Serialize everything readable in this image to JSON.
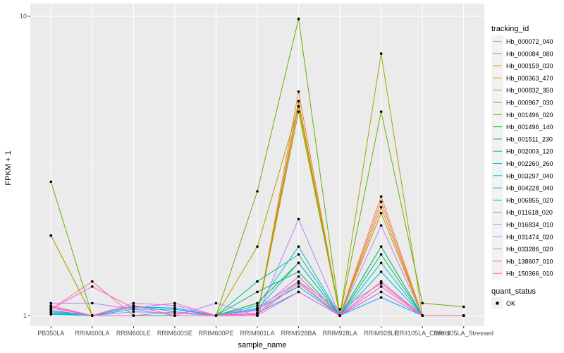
{
  "chart_data": {
    "type": "line",
    "xlabel": "sample_name",
    "ylabel": "FPKM + 1",
    "y_scale": "log10",
    "ylim": [
      1,
      10
    ],
    "y_ticks": [
      {
        "value": 1,
        "label": "1"
      },
      {
        "value": 10,
        "label": "10"
      }
    ],
    "grid": true,
    "legend_position": "right",
    "categories": [
      "PB350LA",
      "RRIM600LA",
      "RRIM600LE",
      "RRIM600SE",
      "RRIM600PE",
      "RRIM901LA",
      "RRIM928BA",
      "RRIM928LA",
      "RRIM928LE",
      "RRII105LA_Control",
      "RRII105LA_Stressed"
    ],
    "legend": {
      "color_title": "tracking_id",
      "shape_title": "quant_status",
      "shape_items": [
        "OK"
      ]
    },
    "series": [
      {
        "name": "Hb_000072_040",
        "color": "#F8766D",
        "values": [
          1.05,
          1.3,
          1.0,
          1.0,
          1.0,
          1.0,
          5.0,
          1.0,
          2.4,
          1.0,
          1.0
        ]
      },
      {
        "name": "Hb_000084_080",
        "color": "#EC8239",
        "values": [
          1.85,
          1.0,
          1.0,
          1.0,
          1.0,
          1.0,
          5.6,
          1.0,
          2.5,
          1.0,
          1.0
        ]
      },
      {
        "name": "Hb_000159_030",
        "color": "#DB8E00",
        "values": [
          1.03,
          1.0,
          1.0,
          1.0,
          1.0,
          1.0,
          5.2,
          1.0,
          2.3,
          1.0,
          1.0
        ]
      },
      {
        "name": "Hb_000363_470",
        "color": "#C79800",
        "values": [
          1.04,
          1.0,
          1.0,
          1.0,
          1.0,
          1.0,
          5.2,
          1.0,
          2.2,
          1.0,
          1.0
        ]
      },
      {
        "name": "Hb_000832_350",
        "color": "#AEA200",
        "values": [
          1.85,
          1.0,
          1.0,
          1.0,
          1.0,
          1.7,
          5.0,
          1.0,
          7.5,
          1.0,
          1.0
        ]
      },
      {
        "name": "Hb_000967_030",
        "color": "#8FAA00",
        "values": [
          1.02,
          1.0,
          1.0,
          1.0,
          1.0,
          1.0,
          4.8,
          1.0,
          1.3,
          1.0,
          1.0
        ]
      },
      {
        "name": "Hb_001496_020",
        "color": "#64B200",
        "values": [
          2.8,
          1.0,
          1.0,
          1.0,
          1.0,
          2.6,
          9.8,
          1.0,
          4.8,
          1.1,
          1.07
        ]
      },
      {
        "name": "Hb_001496_140",
        "color": "#00B81B",
        "values": [
          1.02,
          1.0,
          1.0,
          1.0,
          1.0,
          1.1,
          1.5,
          1.0,
          1.7,
          1.0,
          1.0
        ]
      },
      {
        "name": "Hb_001511_230",
        "color": "#00BD5C",
        "values": [
          1.01,
          1.0,
          1.0,
          1.0,
          1.0,
          1.2,
          1.4,
          1.0,
          1.6,
          1.0,
          1.0
        ]
      },
      {
        "name": "Hb_002003_120",
        "color": "#00C08E",
        "values": [
          1.03,
          1.0,
          1.0,
          1.0,
          1.0,
          1.3,
          1.6,
          1.0,
          1.7,
          1.0,
          1.0
        ]
      },
      {
        "name": "Hb_002260_260",
        "color": "#00C1B7",
        "values": [
          1.01,
          1.0,
          1.0,
          1.0,
          1.0,
          1.05,
          1.25,
          1.0,
          1.2,
          1.0,
          1.0
        ]
      },
      {
        "name": "Hb_003297_040",
        "color": "#00BDDC",
        "values": [
          1.02,
          1.0,
          1.05,
          1.05,
          1.0,
          1.08,
          1.7,
          1.0,
          1.5,
          1.0,
          1.0
        ]
      },
      {
        "name": "Hb_004228_040",
        "color": "#00B4F0",
        "values": [
          1.02,
          1.0,
          1.08,
          1.03,
          1.0,
          1.05,
          1.5,
          1.0,
          1.4,
          1.0,
          1.0
        ]
      },
      {
        "name": "Hb_006856_020",
        "color": "#00A5FF",
        "values": [
          1.04,
          1.0,
          1.07,
          1.06,
          1.0,
          1.02,
          1.2,
          1.0,
          1.15,
          1.0,
          1.0
        ]
      },
      {
        "name": "Hb_011618_020",
        "color": "#7F96FF",
        "values": [
          1.03,
          1.0,
          1.03,
          1.02,
          1.0,
          1.06,
          1.3,
          1.0,
          1.25,
          1.0,
          1.0
        ]
      },
      {
        "name": "Hb_016834_010",
        "color": "#BC81FF",
        "values": [
          1.1,
          1.1,
          1.05,
          1.0,
          1.1,
          1.0,
          2.1,
          1.0,
          2.0,
          1.0,
          1.0
        ]
      },
      {
        "name": "Hb_031474_020",
        "color": "#E26EF7",
        "values": [
          1.08,
          1.0,
          1.1,
          1.08,
          1.0,
          1.04,
          1.35,
          1.0,
          1.3,
          1.0,
          1.0
        ]
      },
      {
        "name": "Hb_033286_020",
        "color": "#F863DF",
        "values": [
          1.05,
          1.25,
          1.06,
          1.1,
          1.0,
          1.0,
          1.2,
          1.0,
          1.2,
          1.0,
          1.0
        ]
      },
      {
        "name": "Hb_138607_010",
        "color": "#FF62BC",
        "values": [
          1.06,
          1.0,
          1.0,
          1.03,
          1.0,
          1.01,
          1.28,
          1.0,
          1.25,
          1.0,
          1.0
        ]
      },
      {
        "name": "Hb_150366_010",
        "color": "#FF6C91",
        "values": [
          1.07,
          1.0,
          1.08,
          1.0,
          1.0,
          1.02,
          1.3,
          1.05,
          1.28,
          1.0,
          1.0
        ]
      }
    ]
  }
}
